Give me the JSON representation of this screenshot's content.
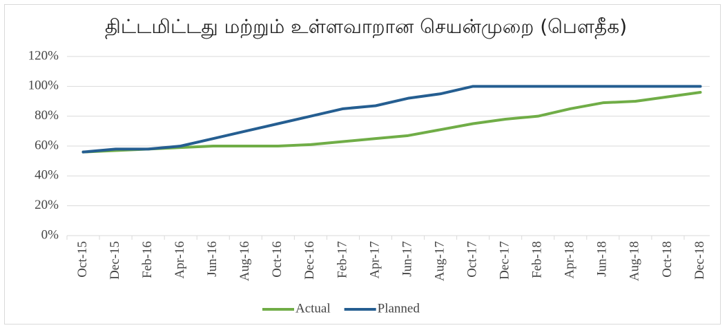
{
  "chart_data": {
    "type": "line",
    "title": "திட்டமிட்டது மற்றும் உள்ளவாறான செயன்முறை (பௌதீக)",
    "categories": [
      "Oct-15",
      "Dec-15",
      "Feb-16",
      "Apr-16",
      "Jun-16",
      "Aug-16",
      "Oct-16",
      "Dec-16",
      "Feb-17",
      "Apr-17",
      "Jun-17",
      "Aug-17",
      "Oct-17",
      "Dec-17",
      "Feb-18",
      "Apr-18",
      "Jun-18",
      "Aug-18",
      "Oct-18",
      "Dec-18"
    ],
    "series": [
      {
        "name": "Actual",
        "color": "#70ad47",
        "values": [
          56,
          57,
          58,
          59,
          60,
          60,
          60,
          61,
          63,
          65,
          67,
          71,
          75,
          78,
          80,
          85,
          89,
          90,
          93,
          96
        ]
      },
      {
        "name": "Planned",
        "color": "#255e91",
        "values": [
          56,
          58,
          58,
          60,
          65,
          70,
          75,
          80,
          85,
          87,
          92,
          95,
          100,
          100,
          100,
          100,
          100,
          100,
          100,
          100
        ]
      }
    ],
    "ylim": [
      0,
      120
    ],
    "yticks": [
      {
        "value": 0,
        "label": "0%"
      },
      {
        "value": 20,
        "label": "20%"
      },
      {
        "value": 40,
        "label": "40%"
      },
      {
        "value": 60,
        "label": "60%"
      },
      {
        "value": 80,
        "label": "80%"
      },
      {
        "value": 100,
        "label": "100%"
      },
      {
        "value": 120,
        "label": "120%"
      }
    ],
    "grid": true,
    "legend": "bottom"
  }
}
